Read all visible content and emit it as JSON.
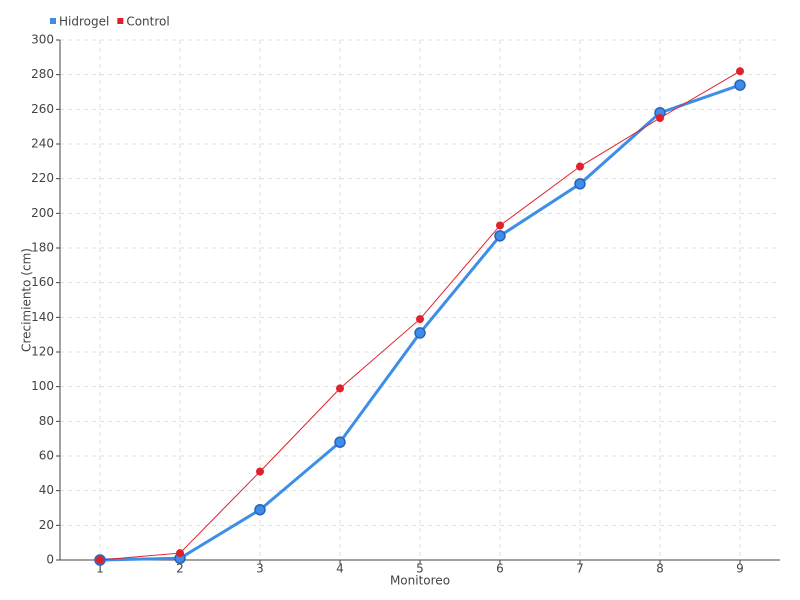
{
  "chart_data": {
    "type": "line",
    "x_label": "Monitoreo",
    "y_label": "Crecimiento (cm)",
    "categories": [
      "1",
      "2",
      "3",
      "4",
      "5",
      "6",
      "7",
      "8",
      "9"
    ],
    "series": [
      {
        "name": "Hidrogel",
        "color": "#3d8ee8",
        "values": [
          0,
          1,
          29,
          68,
          131,
          187,
          217,
          258,
          274
        ]
      },
      {
        "name": "Control",
        "color": "#e0202a",
        "values": [
          0,
          4,
          51,
          99,
          139,
          193,
          227,
          255,
          282
        ]
      }
    ],
    "ylim": [
      0,
      300
    ],
    "yticks": [
      0,
      20,
      40,
      60,
      80,
      100,
      120,
      140,
      160,
      180,
      200,
      220,
      240,
      260,
      280,
      300
    ],
    "grid": true,
    "legend": "top-left"
  }
}
